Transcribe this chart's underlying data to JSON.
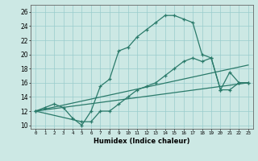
{
  "xlabel": "Humidex (Indice chaleur)",
  "ylabel": "",
  "bg_color": "#cce8e4",
  "grid_color": "#99cccc",
  "line_color": "#2a7a6a",
  "xlim": [
    -0.5,
    23.5
  ],
  "ylim": [
    9.5,
    27.0
  ],
  "xticks": [
    0,
    1,
    2,
    3,
    4,
    5,
    6,
    7,
    8,
    9,
    10,
    11,
    12,
    13,
    14,
    15,
    16,
    17,
    18,
    19,
    20,
    21,
    22,
    23
  ],
  "yticks": [
    10,
    12,
    14,
    16,
    18,
    20,
    22,
    24,
    26
  ],
  "line1_x": [
    0,
    1,
    2,
    3,
    4,
    5,
    6,
    7,
    8,
    9,
    10,
    11,
    12,
    13,
    14,
    15,
    16,
    17,
    18,
    19,
    20,
    21,
    22,
    23
  ],
  "line1_y": [
    12,
    12.5,
    13,
    12.5,
    11,
    10,
    12,
    15.5,
    16.5,
    20.5,
    21,
    22.5,
    23.5,
    24.5,
    25.5,
    25.5,
    25,
    24.5,
    20,
    19.5,
    15,
    17.5,
    16,
    16
  ],
  "line2_x": [
    0,
    5,
    6,
    7,
    8,
    9,
    10,
    11,
    12,
    13,
    14,
    15,
    16,
    17,
    18,
    19,
    20,
    21,
    22,
    23
  ],
  "line2_y": [
    12,
    10.5,
    10.5,
    12,
    12,
    13,
    14,
    15,
    15.5,
    16,
    17,
    18,
    19,
    19.5,
    19,
    19.5,
    15,
    15,
    16,
    16
  ],
  "line3_x": [
    0,
    23
  ],
  "line3_y": [
    12,
    16
  ],
  "line4_x": [
    0,
    23
  ],
  "line4_y": [
    12,
    18.5
  ]
}
